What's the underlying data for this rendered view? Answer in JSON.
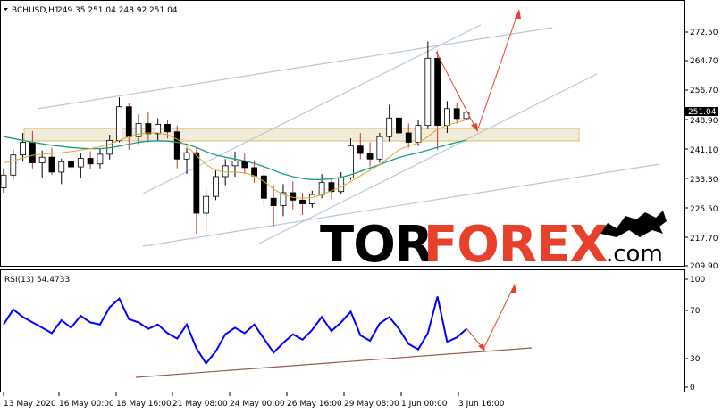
{
  "header": {
    "symbol": "BCHUSD,H1",
    "ohlc": "249.35 251.04 248.92 251.04",
    "indicator": "RSI(13) 54.4733"
  },
  "price_axis": {
    "ticks": [
      "272.50",
      "264.70",
      "256.70",
      "248.90",
      "241.10",
      "233.30",
      "225.50",
      "217.70",
      "209.90"
    ],
    "current_price": "251.04"
  },
  "rsi_axis": {
    "ticks": [
      "100",
      "70",
      "30",
      "0"
    ]
  },
  "time_axis": {
    "ticks": [
      "13 May 2020",
      "16 May 00:00",
      "18 May 16:00",
      "21 May 08:00",
      "24 May 00:00",
      "26 May 16:00",
      "29 May 08:00",
      "1 Jun 00:00",
      "3 Jun 16:00"
    ]
  },
  "watermark": {
    "tor": "TOR",
    "forex": "FOREX",
    "com": ".com"
  },
  "colors": {
    "bull_bear_candle": "#000000",
    "up_wick_highlight": "#c0392b",
    "ma_fast": "#e0a72c",
    "ma_slow": "#1a9c8a",
    "channel_lines": "#b8c8d8",
    "zone_fill": "#efe8d4",
    "zone_border": "#d9b35a",
    "forecast_arrow": "#e8412b",
    "rsi_line": "#0000ff",
    "rsi_trendline": "#9a5a50",
    "watermark_red": "#e8412b"
  },
  "chart_data": [
    {
      "type": "candlestick",
      "title": "BCHUSD,H1",
      "ylim": [
        209.9,
        277
      ],
      "yticks": [
        272.5,
        264.7,
        256.7,
        248.9,
        241.1,
        233.3,
        225.5,
        217.7,
        209.9
      ],
      "series": [
        {
          "name": "price",
          "values": [
            [
              230.8,
              236.0,
              229.5,
              234.2
            ],
            [
              234.2,
              241.0,
              233.0,
              239.6
            ],
            [
              239.6,
              245.5,
              237.8,
              243.0
            ],
            [
              243.0,
              246.0,
              236.0,
              237.5
            ],
            [
              237.5,
              240.8,
              233.5,
              239.0
            ],
            [
              239.0,
              241.5,
              234.2,
              235.0
            ],
            [
              235.0,
              238.6,
              231.8,
              237.8
            ],
            [
              237.8,
              241.0,
              235.2,
              236.4
            ],
            [
              236.4,
              240.0,
              233.4,
              238.7
            ],
            [
              238.7,
              240.6,
              235.8,
              237.2
            ],
            [
              237.2,
              241.2,
              236.0,
              239.8
            ],
            [
              239.8,
              245.0,
              238.4,
              243.5
            ],
            [
              243.5,
              255.0,
              243.0,
              252.5
            ],
            [
              252.5,
              253.5,
              241.0,
              244.5
            ],
            [
              244.5,
              250.5,
              242.5,
              248.0
            ],
            [
              248.0,
              251.0,
              243.0,
              245.3
            ],
            [
              245.3,
              249.4,
              243.5,
              247.8
            ],
            [
              247.8,
              249.0,
              244.0,
              245.8
            ],
            [
              245.8,
              247.5,
              236.0,
              238.5
            ],
            [
              238.5,
              241.5,
              234.5,
              240.2
            ],
            [
              240.2,
              241.5,
              218.5,
              224.0
            ],
            [
              224.0,
              230.5,
              219.5,
              228.5
            ],
            [
              228.5,
              235.5,
              227.5,
              233.8
            ],
            [
              233.8,
              238.5,
              231.5,
              236.7
            ],
            [
              236.7,
              240.5,
              233.8,
              238.0
            ],
            [
              238.0,
              240.0,
              234.5,
              236.2
            ],
            [
              236.2,
              238.2,
              232.2,
              234.0
            ],
            [
              234.0,
              236.8,
              226.0,
              228.0
            ],
            [
              228.0,
              231.5,
              220.5,
              226.0
            ],
            [
              226.0,
              231.8,
              223.2,
              229.5
            ],
            [
              229.5,
              232.5,
              225.0,
              227.5
            ],
            [
              227.5,
              229.5,
              223.5,
              226.5
            ],
            [
              226.5,
              230.0,
              225.5,
              229.0
            ],
            [
              229.0,
              234.5,
              228.0,
              232.2
            ],
            [
              232.2,
              233.5,
              227.8,
              229.8
            ],
            [
              229.8,
              235.0,
              229.2,
              233.5
            ],
            [
              233.5,
              244.0,
              233.0,
              242.0
            ],
            [
              242.0,
              245.5,
              238.5,
              240.0
            ],
            [
              240.0,
              243.0,
              236.5,
              238.5
            ],
            [
              238.5,
              245.5,
              237.5,
              244.5
            ],
            [
              244.5,
              253.0,
              243.2,
              249.5
            ],
            [
              249.5,
              251.5,
              244.0,
              245.5
            ],
            [
              245.5,
              248.0,
              241.5,
              243.0
            ],
            [
              243.0,
              249.0,
              242.0,
              247.5
            ],
            [
              247.5,
              270.0,
              246.5,
              265.5
            ],
            [
              265.5,
              267.5,
              241.0,
              247.5
            ],
            [
              247.5,
              254.0,
              245.5,
              252.0
            ],
            [
              252.0,
              253.5,
              248.0,
              249.35
            ],
            [
              249.35,
              251.04,
              248.92,
              251.04
            ]
          ]
        },
        {
          "name": "ma_fast",
          "values": [
            237.5,
            238.0,
            238.8,
            239.5,
            239.8,
            240.0,
            240.2,
            240.5,
            240.9,
            241.3,
            241.8,
            242.5,
            243.5,
            244.5,
            245.2,
            245.5,
            245.5,
            245.0,
            243.8,
            242.0,
            239.5,
            237.0,
            235.5,
            235.0,
            235.0,
            234.8,
            234.0,
            232.5,
            230.5,
            229.0,
            228.2,
            228.0,
            228.2,
            229.0,
            230.0,
            231.0,
            232.5,
            234.0,
            235.5,
            237.0,
            239.0,
            241.0,
            242.0,
            242.8,
            244.5,
            246.5,
            247.5,
            248.3,
            249.0
          ]
        },
        {
          "name": "ma_slow",
          "values": [
            244.5,
            244.0,
            243.5,
            243.0,
            242.6,
            242.2,
            241.9,
            241.6,
            241.4,
            241.3,
            241.3,
            241.5,
            242.0,
            242.5,
            243.0,
            243.3,
            243.4,
            243.3,
            243.0,
            242.5,
            241.6,
            240.5,
            239.6,
            239.0,
            238.5,
            238.0,
            237.3,
            236.5,
            235.5,
            234.5,
            233.8,
            233.3,
            233.0,
            233.0,
            233.2,
            233.6,
            234.3,
            235.2,
            236.1,
            237.0,
            238.0,
            238.9,
            239.6,
            240.2,
            240.9,
            241.6,
            242.3,
            243.0,
            243.6
          ]
        }
      ]
    },
    {
      "type": "line",
      "title": "RSI(13)",
      "ylim": [
        0,
        100
      ],
      "yticks": [
        100,
        70,
        30,
        0
      ],
      "series": [
        {
          "name": "RSI(13)",
          "values": [
            58,
            72,
            65,
            60,
            55,
            50,
            62,
            55,
            66,
            60,
            58,
            74,
            82,
            63,
            60,
            54,
            58,
            50,
            45,
            58,
            36,
            22,
            33,
            49,
            55,
            50,
            58,
            45,
            32,
            41,
            49,
            44,
            53,
            65,
            52,
            60,
            70,
            48,
            43,
            59,
            65,
            54,
            40,
            35,
            50,
            84,
            42,
            46,
            54
          ]
        }
      ]
    }
  ]
}
